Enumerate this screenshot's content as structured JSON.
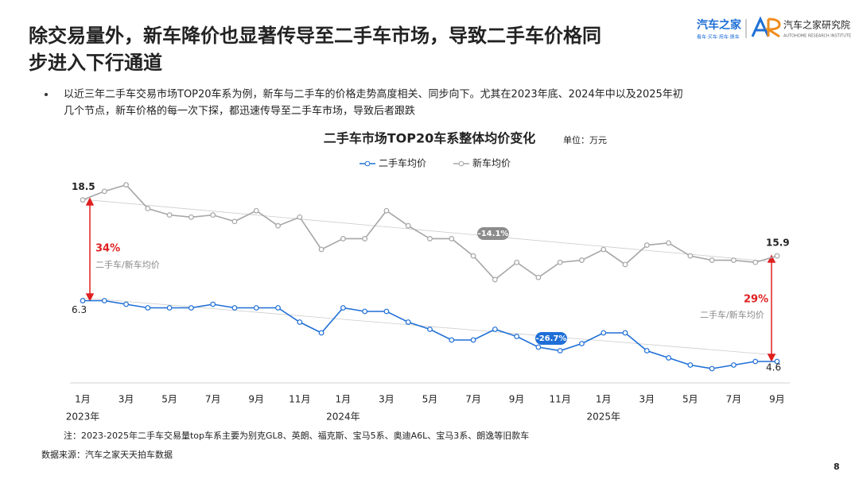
{
  "slide": {
    "title_lines": [
      "除交易量外，新车降价也显著传导至二手车市场，导致二手车价格同",
      "步进入下行通道"
    ],
    "bullet_lines": [
      "以近三年二手车交易市场TOP20车系为例，新车与二手车的价格走势高度相关、同步向下。尤其在2023年底、2024年中以及2025年初",
      "几个节点，新车价格的每一次下探，都迅速传导至二手车市场，导致后者跟跌"
    ],
    "note": "注：2023-2025年二手车交易量top车系主要为别克GL8、英朗、福克斯、宝马5系、奥迪A6L、宝马3系、朗逸等旧款车",
    "source": "数据来源：汽车之家天天拍车数据",
    "page_number": "8",
    "logo_brand": "汽车之家",
    "logo_brand_sub": "看车·买车·用车·换车",
    "logo_institute": "汽车之家研究院",
    "logo_institute_sub": "AUTOHOME RESEARCH INSTITUTE"
  },
  "chart_data": {
    "type": "line",
    "title": "二手车市场TOP20车系整体均价变化",
    "unit": "单位：万元",
    "categories": [
      "1月",
      null,
      "3月",
      null,
      "5月",
      null,
      "7月",
      null,
      "9月",
      null,
      "11月",
      null,
      "1月",
      null,
      "3月",
      null,
      "5月",
      null,
      "7月",
      null,
      "9月",
      null,
      "11月",
      null,
      "1月",
      null,
      "3月",
      null,
      "5月",
      null,
      "7月",
      null,
      "9月"
    ],
    "x_group_labels": [
      "2023年",
      "2024年",
      "2025年"
    ],
    "series": [
      {
        "name": "二手车均价",
        "color": "#1f6fd6",
        "axis": "y2",
        "values": [
          6.3,
          6.3,
          6.2,
          6.1,
          6.1,
          6.1,
          6.2,
          6.1,
          6.1,
          6.1,
          5.7,
          5.4,
          6.1,
          6.0,
          6.0,
          5.7,
          5.5,
          5.2,
          5.2,
          5.5,
          5.3,
          5.0,
          4.9,
          5.1,
          5.4,
          5.4,
          4.9,
          4.7,
          4.5,
          4.4,
          4.5,
          4.6,
          4.6
        ]
      },
      {
        "name": "新车均价",
        "color": "#a6a6a6",
        "values": [
          18.5,
          18.9,
          19.2,
          18.1,
          17.8,
          17.7,
          17.8,
          17.5,
          18.0,
          17.3,
          17.7,
          16.2,
          16.7,
          16.7,
          18.0,
          17.3,
          16.7,
          16.7,
          15.9,
          14.8,
          15.6,
          14.9,
          15.6,
          15.7,
          16.2,
          15.5,
          16.4,
          16.5,
          15.9,
          15.7,
          15.7,
          15.6,
          15.9
        ]
      }
    ],
    "ylim": [
      10,
      19.3
    ],
    "y2lim": [
      4,
      9.6
    ],
    "legend": "top",
    "annotations": [
      "34%",
      "二手车/新车均价",
      "29%",
      "二手车/新车均价",
      "-14.1%",
      "-26.7%"
    ]
  }
}
